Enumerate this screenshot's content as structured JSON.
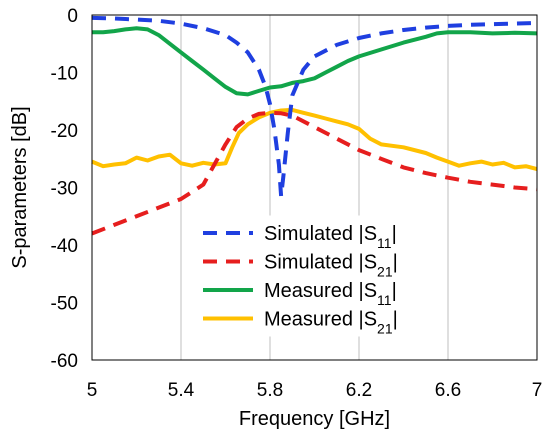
{
  "chart_data": {
    "type": "line",
    "xlabel": "Frequency [GHz]",
    "ylabel": "S-parameters [dB]",
    "xlim": [
      5,
      7
    ],
    "ylim": [
      -60,
      0
    ],
    "x_ticks": [
      5,
      5.4,
      5.8,
      6.2,
      6.6,
      7
    ],
    "x_tick_labels": [
      "5",
      "5.4",
      "5.8",
      "6.2",
      "6.6",
      "7"
    ],
    "y_ticks": [
      0,
      -10,
      -20,
      -30,
      -40,
      -50,
      -60
    ],
    "y_tick_labels": [
      "0",
      "-10",
      "-20",
      "-30",
      "-40",
      "-50",
      "-60"
    ],
    "grid": "vertical",
    "legend_position": "center-bottom",
    "series": [
      {
        "name": "Simulated |S11|",
        "label_main": "Simulated |S",
        "label_sub": "11",
        "label_end": "|",
        "color": "#1f3fe0",
        "style": "dashed",
        "x": [
          5.0,
          5.1,
          5.2,
          5.3,
          5.4,
          5.5,
          5.6,
          5.65,
          5.7,
          5.75,
          5.78,
          5.8,
          5.82,
          5.84,
          5.85,
          5.86,
          5.88,
          5.9,
          5.95,
          6.0,
          6.1,
          6.2,
          6.3,
          6.4,
          6.5,
          6.6,
          6.7,
          6.8,
          6.9,
          7.0
        ],
        "y": [
          -0.5,
          -0.6,
          -0.8,
          -1.0,
          -1.5,
          -2.3,
          -3.5,
          -4.8,
          -6.5,
          -9.5,
          -12.5,
          -15.5,
          -20.0,
          -26.0,
          -31.5,
          -28.0,
          -20.5,
          -14.0,
          -9.5,
          -7.2,
          -5.2,
          -4.0,
          -3.2,
          -2.6,
          -2.2,
          -1.9,
          -1.7,
          -1.6,
          -1.5,
          -1.4
        ]
      },
      {
        "name": "Simulated |S21|",
        "label_main": "Simulated |S",
        "label_sub": "21",
        "label_end": "|",
        "color": "#e61e1e",
        "style": "dashed",
        "x": [
          5.0,
          5.1,
          5.2,
          5.3,
          5.4,
          5.5,
          5.55,
          5.6,
          5.65,
          5.7,
          5.75,
          5.8,
          5.85,
          5.9,
          6.0,
          6.1,
          6.2,
          6.3,
          6.4,
          6.5,
          6.6,
          6.7,
          6.8,
          6.9,
          7.0
        ],
        "y": [
          -38.0,
          -36.5,
          -35.0,
          -33.5,
          -32.0,
          -29.5,
          -26.0,
          -22.5,
          -19.5,
          -18.0,
          -17.2,
          -17.0,
          -17.1,
          -17.5,
          -19.5,
          -21.5,
          -23.5,
          -25.0,
          -26.5,
          -27.5,
          -28.3,
          -29.0,
          -29.5,
          -30.0,
          -30.3
        ]
      },
      {
        "name": "Measured |S11|",
        "label_main": "Measured |S",
        "label_sub": "11",
        "label_end": "|",
        "color": "#12a54a",
        "style": "solid",
        "x": [
          5.0,
          5.05,
          5.1,
          5.15,
          5.2,
          5.25,
          5.3,
          5.35,
          5.4,
          5.45,
          5.5,
          5.55,
          5.6,
          5.65,
          5.7,
          5.75,
          5.8,
          5.85,
          5.9,
          5.95,
          6.0,
          6.05,
          6.1,
          6.15,
          6.2,
          6.3,
          6.4,
          6.5,
          6.55,
          6.6,
          6.7,
          6.8,
          6.9,
          7.0
        ],
        "y": [
          -3.0,
          -3.0,
          -2.8,
          -2.5,
          -2.3,
          -2.5,
          -3.5,
          -5.0,
          -6.5,
          -8.0,
          -9.5,
          -11.0,
          -12.5,
          -13.6,
          -13.8,
          -13.2,
          -12.6,
          -12.4,
          -11.8,
          -11.5,
          -11.0,
          -10.0,
          -9.0,
          -8.0,
          -7.2,
          -6.0,
          -4.8,
          -3.8,
          -3.2,
          -3.0,
          -3.0,
          -3.2,
          -3.1,
          -3.2
        ]
      },
      {
        "name": "Measured |S21|",
        "label_main": "Measured |S",
        "label_sub": "21",
        "label_end": "|",
        "color": "#ffc000",
        "style": "solid",
        "x": [
          5.0,
          5.05,
          5.1,
          5.15,
          5.2,
          5.25,
          5.3,
          5.35,
          5.4,
          5.45,
          5.5,
          5.55,
          5.6,
          5.63,
          5.66,
          5.7,
          5.75,
          5.8,
          5.85,
          5.9,
          5.95,
          6.0,
          6.05,
          6.1,
          6.15,
          6.2,
          6.25,
          6.3,
          6.4,
          6.5,
          6.55,
          6.6,
          6.65,
          6.7,
          6.75,
          6.8,
          6.85,
          6.9,
          6.95,
          7.0
        ],
        "y": [
          -25.5,
          -26.3,
          -26.0,
          -25.8,
          -24.8,
          -25.3,
          -24.6,
          -24.3,
          -25.8,
          -26.2,
          -25.7,
          -26.0,
          -25.8,
          -23.0,
          -20.5,
          -19.0,
          -17.8,
          -17.0,
          -16.6,
          -16.5,
          -17.0,
          -17.5,
          -18.0,
          -18.5,
          -19.0,
          -19.8,
          -21.5,
          -22.5,
          -23.0,
          -24.0,
          -24.8,
          -25.5,
          -26.2,
          -25.8,
          -25.5,
          -26.0,
          -25.7,
          -26.5,
          -26.3,
          -26.8
        ]
      }
    ]
  }
}
